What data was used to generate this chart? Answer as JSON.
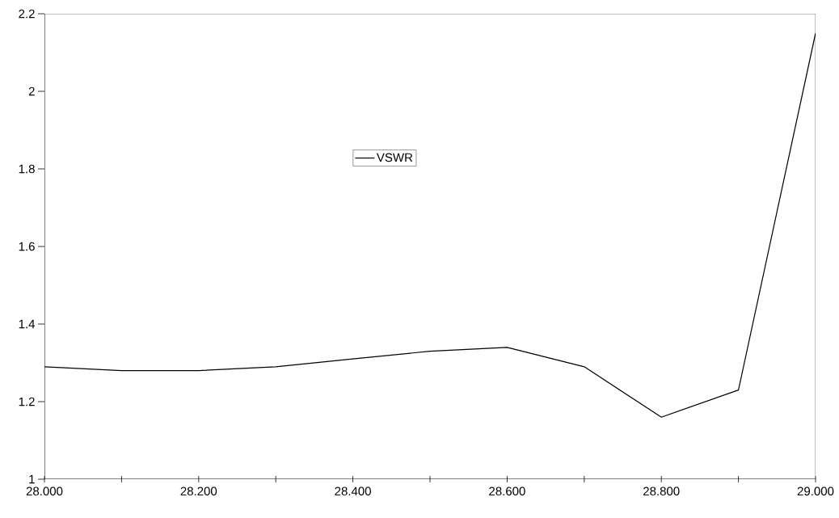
{
  "chart_data": {
    "type": "line",
    "x": [
      28.0,
      28.1,
      28.2,
      28.3,
      28.4,
      28.5,
      28.6,
      28.7,
      28.8,
      28.9,
      29.0
    ],
    "series": [
      {
        "name": "VSWR",
        "color": "#000000",
        "values": [
          1.29,
          1.28,
          1.28,
          1.29,
          1.31,
          1.33,
          1.34,
          1.29,
          1.16,
          1.23,
          2.15
        ]
      }
    ],
    "xlim": [
      28.0,
      29.0
    ],
    "xticks": [
      {
        "value": 28.0,
        "label": "28.000"
      },
      {
        "value": 28.1,
        "label": null
      },
      {
        "value": 28.2,
        "label": "28.200"
      },
      {
        "value": 28.3,
        "label": null
      },
      {
        "value": 28.4,
        "label": "28.400"
      },
      {
        "value": 28.5,
        "label": null
      },
      {
        "value": 28.6,
        "label": "28.600"
      },
      {
        "value": 28.7,
        "label": null
      },
      {
        "value": 28.8,
        "label": "28.800"
      },
      {
        "value": 28.9,
        "label": null
      },
      {
        "value": 29.0,
        "label": "29.000"
      }
    ],
    "ylim": [
      1,
      2.2
    ],
    "yticks": [
      1,
      1.2,
      1.4,
      1.6,
      1.8,
      2,
      2.2
    ],
    "legend": "top",
    "grid": false,
    "marker": "none",
    "line_style": "solid"
  }
}
